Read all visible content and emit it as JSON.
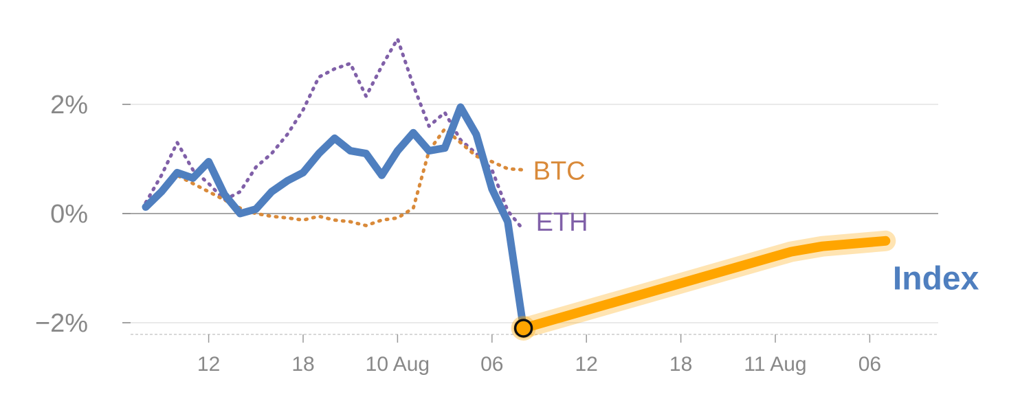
{
  "chart_data": {
    "type": "line",
    "title": "",
    "xlabel": "",
    "ylabel": "",
    "y_unit": "%",
    "ylim": [
      -2.2,
      3.9
    ],
    "grid": "horizontal",
    "y_ticks": [
      {
        "value": 2,
        "label": "2%"
      },
      {
        "value": 0,
        "label": "0%"
      },
      {
        "value": -2,
        "label": "−2%"
      }
    ],
    "x_ticks": [
      {
        "step": 4,
        "label": "12"
      },
      {
        "step": 10,
        "label": "18"
      },
      {
        "step": 16,
        "label": "10 Aug"
      },
      {
        "step": 22,
        "label": "06"
      },
      {
        "step": 28,
        "label": "12"
      },
      {
        "step": 34,
        "label": "18"
      },
      {
        "step": 40,
        "label": "11 Aug"
      },
      {
        "step": 46,
        "label": "06"
      }
    ],
    "series": [
      {
        "name": "ETH",
        "style": "dotted",
        "color": "#8060a8",
        "x": [
          0,
          1,
          2,
          3,
          4,
          5,
          6,
          7,
          8,
          9,
          10,
          11,
          12,
          13,
          14,
          15,
          16,
          17,
          18,
          19,
          20,
          21,
          22,
          23,
          24
        ],
        "y": [
          0.2,
          0.7,
          1.3,
          0.8,
          0.55,
          0.25,
          0.4,
          0.85,
          1.1,
          1.45,
          1.9,
          2.5,
          2.65,
          2.75,
          2.15,
          2.7,
          3.2,
          2.35,
          1.6,
          1.85,
          1.35,
          1.1,
          0.8,
          0.05,
          -0.3
        ]
      },
      {
        "name": "BTC",
        "style": "dotted",
        "color": "#d98a3a",
        "x": [
          0,
          1,
          2,
          3,
          4,
          5,
          6,
          7,
          8,
          9,
          10,
          11,
          12,
          13,
          14,
          15,
          16,
          17,
          18,
          19,
          20,
          21,
          22,
          23,
          24
        ],
        "y": [
          0.15,
          0.45,
          0.7,
          0.55,
          0.4,
          0.25,
          0.1,
          0.0,
          -0.05,
          -0.08,
          -0.12,
          -0.05,
          -0.12,
          -0.15,
          -0.22,
          -0.12,
          -0.08,
          0.1,
          1.15,
          1.55,
          1.3,
          1.05,
          0.95,
          0.82,
          0.8
        ]
      },
      {
        "name": "Index",
        "style": "solid",
        "color": "#4f7fbf",
        "x": [
          0,
          1,
          2,
          3,
          4,
          5,
          6,
          7,
          8,
          9,
          10,
          11,
          12,
          13,
          14,
          15,
          16,
          17,
          18,
          19,
          20,
          21,
          22,
          23,
          24
        ],
        "y": [
          0.12,
          0.4,
          0.75,
          0.65,
          0.95,
          0.35,
          0.0,
          0.08,
          0.4,
          0.6,
          0.75,
          1.1,
          1.38,
          1.15,
          1.1,
          0.7,
          1.15,
          1.48,
          1.15,
          1.2,
          1.95,
          1.45,
          0.45,
          -0.15,
          -2.1
        ]
      },
      {
        "name": "Index",
        "style": "highlight",
        "color": "#ffa500",
        "x": [
          24,
          41,
          43,
          47
        ],
        "y": [
          -2.1,
          -0.7,
          -0.6,
          -0.5
        ]
      }
    ],
    "annotations": [
      {
        "text": "BTC",
        "color": "#d98a3a",
        "x": 24,
        "y": 0.8
      },
      {
        "text": "ETH",
        "color": "#8060a8",
        "x": 24,
        "y": -0.15
      },
      {
        "text": "Index",
        "color": "#4f7fbf",
        "x": 47,
        "y": -1.15
      },
      {
        "marker": "circle",
        "x": 24,
        "y": -2.1
      }
    ]
  }
}
